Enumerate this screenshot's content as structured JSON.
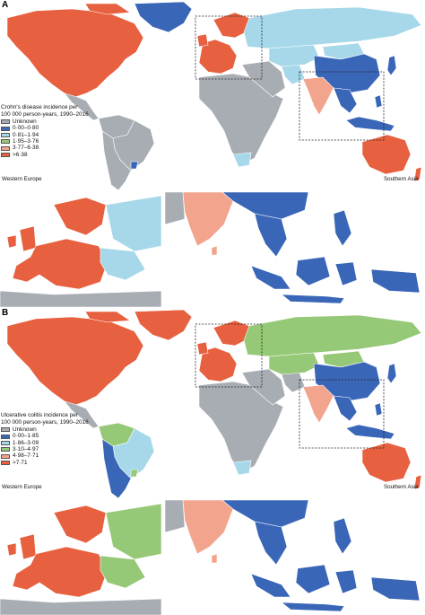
{
  "colors": {
    "unknown": "#a8adb4",
    "c1": "#3a66b8",
    "c2": "#a6d8ea",
    "c3": "#95c877",
    "c4": "#f2a48c",
    "c5": "#e7603f",
    "ocean": "#ffffff",
    "border": "#ffffff"
  },
  "panels": [
    {
      "letter": "A",
      "legend_title_line1": "Crohn's disease incidence per",
      "legend_title_line2": "100 000 person-years, 1990–2016",
      "legend": [
        "Unknown",
        "0·00–0·80",
        "0·81–1·94",
        "1·95–3·76",
        "3·77–6·38",
        ">6·38"
      ],
      "inset_left_label": "Western Europe",
      "inset_right_label": "Southern Asia",
      "regions": {
        "north_america": "c5",
        "greenland": "c1",
        "central_america": "unknown",
        "south_america_north": "unknown",
        "brazil": "unknown",
        "south_america_south": "unknown",
        "uruguay": "c1",
        "africa": "unknown",
        "south_africa": "c2",
        "western_europe": "c5",
        "scandinavia": "c5",
        "russia": "c2",
        "middle_east": "unknown",
        "iran": "c2",
        "central_asia": "c2",
        "india": "c4",
        "china": "c1",
        "mongolia": "c2",
        "japan": "c1",
        "southeast_asia": "c1",
        "indonesia": "c1",
        "australia": "c5",
        "new_zealand": "c5"
      }
    },
    {
      "letter": "B",
      "legend_title_line1": "Ulcerative colitis incidence per",
      "legend_title_line2": "100 000 person-years, 1990–2016",
      "legend": [
        "Unknown",
        "0·00–1·85",
        "1·86–3·09",
        "3·10–4·97",
        "4·98–7·71",
        ">7·71"
      ],
      "inset_left_label": "Western Europe",
      "inset_right_label": "Southern Asia",
      "regions": {
        "north_america": "c5",
        "greenland": "c5",
        "central_america": "unknown",
        "south_america_north": "c3",
        "brazil": "c2",
        "south_america_south": "c1",
        "uruguay": "c3",
        "africa": "unknown",
        "south_africa": "c2",
        "western_europe": "c5",
        "scandinavia": "c5",
        "russia": "c3",
        "middle_east": "unknown",
        "iran": "unknown",
        "central_asia": "c3",
        "india": "c4",
        "china": "c1",
        "mongolia": "c3",
        "japan": "c1",
        "southeast_asia": "c1",
        "indonesia": "c1",
        "australia": "c5",
        "new_zealand": "c5"
      }
    }
  ]
}
